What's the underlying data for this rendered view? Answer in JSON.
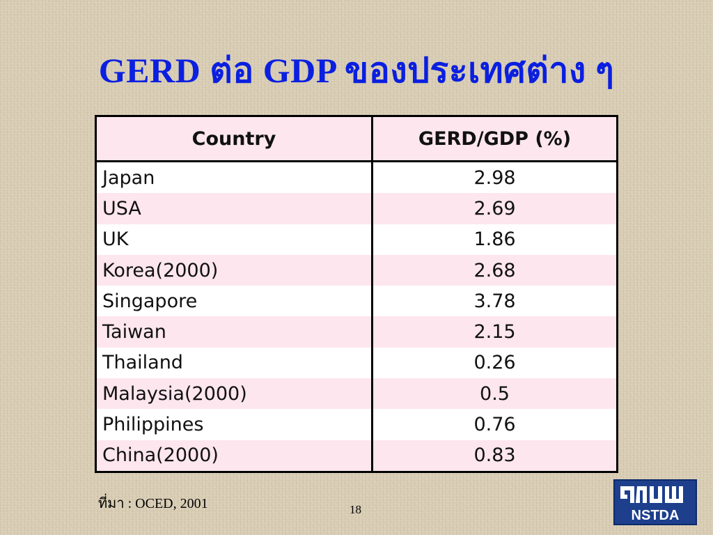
{
  "slide": {
    "title": "GERD ต่อ GDP  ของประเทศต่าง ๆ",
    "source": "ที่มา : OCED, 2001",
    "page_number": "18",
    "logo_text": "NSTDA"
  },
  "table": {
    "headers": [
      "Country",
      "GERD/GDP (%)"
    ],
    "rows": [
      {
        "country": "Japan",
        "value": "2.98"
      },
      {
        "country": "USA",
        "value": "2.69"
      },
      {
        "country": "UK",
        "value": "1.86"
      },
      {
        "country": "Korea(2000)",
        "value": "2.68"
      },
      {
        "country": "Singapore",
        "value": "3.78"
      },
      {
        "country": "Taiwan",
        "value": "2.15"
      },
      {
        "country": "Thailand",
        "value": "0.26"
      },
      {
        "country": "Malaysia(2000)",
        "value": "0.5"
      },
      {
        "country": "Philippines",
        "value": "0.76"
      },
      {
        "country": "China(2000)",
        "value": "0.83"
      }
    ]
  },
  "colors": {
    "title": "#0a1fe0",
    "header_bg": "#fde6ee",
    "row_alt_bg": "#fde6ee",
    "logo_bg": "#1d3f8c"
  }
}
